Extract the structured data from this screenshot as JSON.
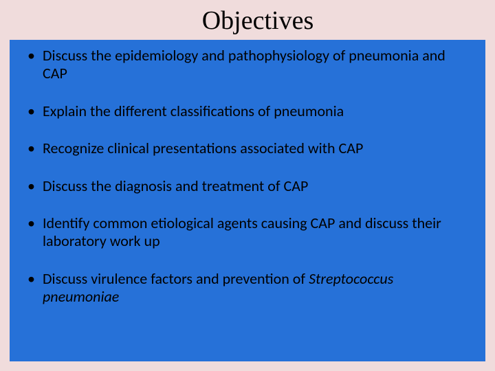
{
  "slide": {
    "title": "Objectives",
    "title_font": "Georgia, serif",
    "title_fontsize": 38,
    "title_color": "#000000",
    "background_color": "#f0dcdc",
    "content_background": "#2671d8",
    "body_fontsize": 22,
    "body_color": "#000000",
    "bullets": [
      {
        "text": "Discuss the epidemiology and pathophysiology of pneumonia and CAP",
        "italic_tail": null
      },
      {
        "text": "Explain the different classifications of pneumonia",
        "italic_tail": null
      },
      {
        "text": "Recognize clinical presentations associated with CAP",
        "italic_tail": null
      },
      {
        "text": "Discuss the diagnosis and treatment of CAP",
        "italic_tail": null
      },
      {
        "text": "Identify common etiological agents causing CAP and discuss their laboratory work up",
        "italic_tail": null
      },
      {
        "text": "Discuss virulence factors and prevention of ",
        "italic_tail": "Streptococcus pneumoniae"
      }
    ]
  }
}
